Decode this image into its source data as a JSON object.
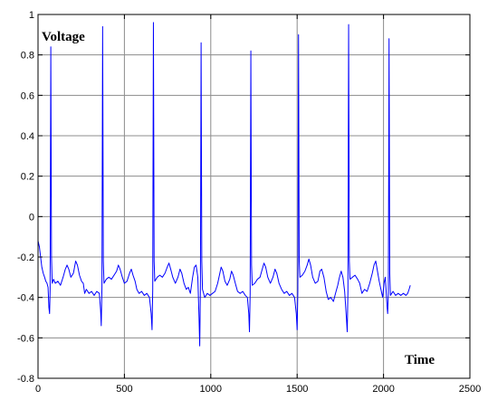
{
  "chart_data": {
    "type": "line",
    "title": "",
    "xlabel": "Time",
    "ylabel": "Voltage",
    "xlim": [
      0,
      2500
    ],
    "ylim": [
      -0.8,
      1
    ],
    "x_ticks": [
      0,
      500,
      1000,
      1500,
      2000,
      2500
    ],
    "x_tick_labels": [
      "0",
      "500",
      "1000",
      "1500",
      "2000",
      "2500"
    ],
    "y_ticks": [
      -0.8,
      -0.6,
      -0.4,
      -0.2,
      0,
      0.2,
      0.4,
      0.6,
      0.8,
      1
    ],
    "y_tick_labels": [
      "-0.8",
      "-0.6",
      "-0.4",
      "-0.2",
      "0",
      "0.2",
      "0.4",
      "0.6",
      "0.8",
      "1"
    ],
    "grid": true,
    "series": [
      {
        "color": "#0000ff",
        "points": [
          [
            0,
            -0.12
          ],
          [
            8,
            -0.15
          ],
          [
            15,
            -0.2
          ],
          [
            22,
            -0.25
          ],
          [
            30,
            -0.28
          ],
          [
            38,
            -0.3
          ],
          [
            45,
            -0.32
          ],
          [
            52,
            -0.33
          ],
          [
            58,
            -0.35
          ],
          [
            63,
            -0.45
          ],
          [
            67,
            -0.48
          ],
          [
            70,
            -0.36
          ],
          [
            74,
            0.84
          ],
          [
            78,
            -0.2
          ],
          [
            82,
            -0.33
          ],
          [
            90,
            -0.31
          ],
          [
            100,
            -0.33
          ],
          [
            115,
            -0.32
          ],
          [
            130,
            -0.34
          ],
          [
            145,
            -0.3
          ],
          [
            158,
            -0.26
          ],
          [
            168,
            -0.24
          ],
          [
            178,
            -0.26
          ],
          [
            190,
            -0.3
          ],
          [
            205,
            -0.28
          ],
          [
            218,
            -0.22
          ],
          [
            228,
            -0.24
          ],
          [
            240,
            -0.29
          ],
          [
            252,
            -0.32
          ],
          [
            262,
            -0.33
          ],
          [
            270,
            -0.38
          ],
          [
            280,
            -0.36
          ],
          [
            295,
            -0.38
          ],
          [
            310,
            -0.37
          ],
          [
            325,
            -0.39
          ],
          [
            340,
            -0.37
          ],
          [
            355,
            -0.38
          ],
          [
            362,
            -0.46
          ],
          [
            366,
            -0.54
          ],
          [
            370,
            -0.35
          ],
          [
            374,
            0.94
          ],
          [
            378,
            -0.22
          ],
          [
            382,
            -0.33
          ],
          [
            395,
            -0.31
          ],
          [
            410,
            -0.3
          ],
          [
            425,
            -0.31
          ],
          [
            440,
            -0.29
          ],
          [
            455,
            -0.27
          ],
          [
            465,
            -0.24
          ],
          [
            475,
            -0.26
          ],
          [
            488,
            -0.3
          ],
          [
            500,
            -0.33
          ],
          [
            515,
            -0.32
          ],
          [
            530,
            -0.28
          ],
          [
            540,
            -0.26
          ],
          [
            550,
            -0.29
          ],
          [
            562,
            -0.32
          ],
          [
            572,
            -0.36
          ],
          [
            585,
            -0.38
          ],
          [
            600,
            -0.37
          ],
          [
            615,
            -0.39
          ],
          [
            630,
            -0.38
          ],
          [
            645,
            -0.4
          ],
          [
            655,
            -0.48
          ],
          [
            660,
            -0.56
          ],
          [
            664,
            -0.36
          ],
          [
            668,
            0.96
          ],
          [
            672,
            -0.22
          ],
          [
            676,
            -0.32
          ],
          [
            690,
            -0.3
          ],
          [
            705,
            -0.29
          ],
          [
            720,
            -0.3
          ],
          [
            735,
            -0.28
          ],
          [
            748,
            -0.25
          ],
          [
            758,
            -0.23
          ],
          [
            768,
            -0.26
          ],
          [
            780,
            -0.3
          ],
          [
            795,
            -0.33
          ],
          [
            810,
            -0.3
          ],
          [
            822,
            -0.26
          ],
          [
            832,
            -0.28
          ],
          [
            845,
            -0.33
          ],
          [
            858,
            -0.36
          ],
          [
            870,
            -0.35
          ],
          [
            882,
            -0.38
          ],
          [
            895,
            -0.3
          ],
          [
            905,
            -0.25
          ],
          [
            915,
            -0.24
          ],
          [
            925,
            -0.3
          ],
          [
            932,
            -0.5
          ],
          [
            936,
            -0.64
          ],
          [
            940,
            -0.36
          ],
          [
            944,
            0.86
          ],
          [
            948,
            -0.22
          ],
          [
            952,
            -0.36
          ],
          [
            965,
            -0.4
          ],
          [
            980,
            -0.38
          ],
          [
            995,
            -0.39
          ],
          [
            1010,
            -0.38
          ],
          [
            1025,
            -0.37
          ],
          [
            1040,
            -0.33
          ],
          [
            1050,
            -0.29
          ],
          [
            1060,
            -0.25
          ],
          [
            1070,
            -0.27
          ],
          [
            1082,
            -0.32
          ],
          [
            1095,
            -0.34
          ],
          [
            1110,
            -0.31
          ],
          [
            1120,
            -0.27
          ],
          [
            1130,
            -0.29
          ],
          [
            1142,
            -0.33
          ],
          [
            1155,
            -0.37
          ],
          [
            1170,
            -0.38
          ],
          [
            1185,
            -0.37
          ],
          [
            1200,
            -0.39
          ],
          [
            1212,
            -0.4
          ],
          [
            1220,
            -0.48
          ],
          [
            1224,
            -0.57
          ],
          [
            1228,
            -0.38
          ],
          [
            1232,
            0.82
          ],
          [
            1236,
            -0.24
          ],
          [
            1240,
            -0.34
          ],
          [
            1255,
            -0.33
          ],
          [
            1270,
            -0.31
          ],
          [
            1285,
            -0.3
          ],
          [
            1298,
            -0.26
          ],
          [
            1308,
            -0.23
          ],
          [
            1318,
            -0.25
          ],
          [
            1330,
            -0.3
          ],
          [
            1345,
            -0.33
          ],
          [
            1360,
            -0.3
          ],
          [
            1372,
            -0.26
          ],
          [
            1382,
            -0.28
          ],
          [
            1395,
            -0.33
          ],
          [
            1410,
            -0.36
          ],
          [
            1425,
            -0.38
          ],
          [
            1440,
            -0.37
          ],
          [
            1455,
            -0.39
          ],
          [
            1470,
            -0.38
          ],
          [
            1485,
            -0.4
          ],
          [
            1495,
            -0.48
          ],
          [
            1500,
            -0.56
          ],
          [
            1504,
            -0.37
          ],
          [
            1508,
            0.9
          ],
          [
            1512,
            -0.22
          ],
          [
            1516,
            -0.3
          ],
          [
            1530,
            -0.29
          ],
          [
            1545,
            -0.27
          ],
          [
            1558,
            -0.24
          ],
          [
            1568,
            -0.21
          ],
          [
            1578,
            -0.24
          ],
          [
            1590,
            -0.3
          ],
          [
            1605,
            -0.33
          ],
          [
            1620,
            -0.32
          ],
          [
            1632,
            -0.27
          ],
          [
            1642,
            -0.26
          ],
          [
            1655,
            -0.3
          ],
          [
            1668,
            -0.37
          ],
          [
            1680,
            -0.41
          ],
          [
            1695,
            -0.4
          ],
          [
            1710,
            -0.42
          ],
          [
            1722,
            -0.38
          ],
          [
            1735,
            -0.34
          ],
          [
            1745,
            -0.3
          ],
          [
            1755,
            -0.27
          ],
          [
            1765,
            -0.3
          ],
          [
            1775,
            -0.37
          ],
          [
            1785,
            -0.5
          ],
          [
            1790,
            -0.57
          ],
          [
            1794,
            -0.37
          ],
          [
            1798,
            0.95
          ],
          [
            1802,
            -0.22
          ],
          [
            1806,
            -0.31
          ],
          [
            1820,
            -0.3
          ],
          [
            1835,
            -0.29
          ],
          [
            1850,
            -0.31
          ],
          [
            1862,
            -0.33
          ],
          [
            1875,
            -0.38
          ],
          [
            1890,
            -0.36
          ],
          [
            1905,
            -0.37
          ],
          [
            1920,
            -0.33
          ],
          [
            1935,
            -0.28
          ],
          [
            1945,
            -0.24
          ],
          [
            1955,
            -0.22
          ],
          [
            1965,
            -0.27
          ],
          [
            1975,
            -0.32
          ],
          [
            1985,
            -0.36
          ],
          [
            1995,
            -0.4
          ],
          [
            2003,
            -0.33
          ],
          [
            2010,
            -0.3
          ],
          [
            2016,
            -0.38
          ],
          [
            2020,
            -0.44
          ],
          [
            2024,
            -0.48
          ],
          [
            2028,
            -0.38
          ],
          [
            2032,
            0.88
          ],
          [
            2036,
            -0.28
          ],
          [
            2040,
            -0.39
          ],
          [
            2055,
            -0.37
          ],
          [
            2070,
            -0.39
          ],
          [
            2085,
            -0.38
          ],
          [
            2100,
            -0.39
          ],
          [
            2115,
            -0.38
          ],
          [
            2130,
            -0.39
          ],
          [
            2140,
            -0.38
          ],
          [
            2148,
            -0.36
          ],
          [
            2155,
            -0.34
          ]
        ]
      }
    ]
  }
}
